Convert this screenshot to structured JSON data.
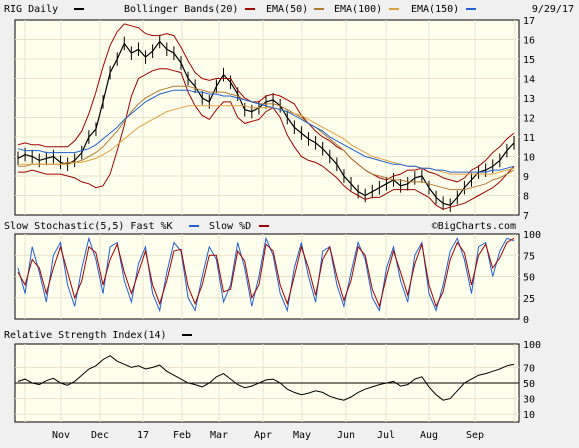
{
  "chart_data": {
    "type": "line",
    "date": "9/29/17",
    "x_month_labels": [
      "Nov",
      "Dec",
      "17",
      "Feb",
      "Mar",
      "Apr",
      "May",
      "Jun",
      "Jul",
      "Aug",
      "Sep"
    ],
    "watermark": "©BigCharts.com",
    "colors": {
      "panel_bg": "#ffffee",
      "grid": "#e6e3c8",
      "price": "#000000",
      "bollinger": "#a00000",
      "ema50": "#b07a30",
      "ema100": "#e0a040",
      "ema150": "#2060d0",
      "stoch_fast": "#2060d0",
      "stoch_slow": "#a00000",
      "rsi": "#000000"
    },
    "panels": [
      {
        "id": "price",
        "legend": [
          {
            "label": "RIG Daily",
            "swatch": "#000000"
          },
          {
            "label": "Bollinger Bands(20)",
            "swatch": "#a00000"
          },
          {
            "label": "EMA(50)",
            "swatch": "#b07a30"
          },
          {
            "label": "EMA(100)",
            "swatch": "#e0a040"
          },
          {
            "label": "EMA(150)",
            "swatch": "#2060d0"
          }
        ],
        "ylim": [
          7,
          17
        ],
        "yticks": [
          "7",
          "8",
          "9",
          "10",
          "11",
          "12",
          "13",
          "14",
          "15",
          "16",
          "17"
        ],
        "series": [
          {
            "name": "RIG Daily",
            "values": [
              9.9,
              10.1,
              10.0,
              9.8,
              9.9,
              10.0,
              9.7,
              9.6,
              9.8,
              10.2,
              11.0,
              11.4,
              12.8,
              14.3,
              15.0,
              15.8,
              15.3,
              15.5,
              15.1,
              15.4,
              15.9,
              15.5,
              15.3,
              14.8,
              14.0,
              13.6,
              13.0,
              12.8,
              13.6,
              14.2,
              13.8,
              13.2,
              12.4,
              12.3,
              12.5,
              12.8,
              12.9,
              12.6,
              12.0,
              11.5,
              11.2,
              10.9,
              10.7,
              10.4,
              10.0,
              9.6,
              9.0,
              8.6,
              8.2,
              8.0,
              8.2,
              8.4,
              8.6,
              8.8,
              8.5,
              8.6,
              8.9,
              9.0,
              8.4,
              7.9,
              7.6,
              7.5,
              7.9,
              8.4,
              8.8,
              9.2,
              9.3,
              9.5,
              9.8,
              10.3,
              10.7
            ]
          },
          {
            "name": "Bollinger Bands(20)",
            "values": [
              10.6,
              10.7,
              10.6,
              10.6,
              10.5,
              10.5,
              10.5,
              10.5,
              10.8,
              11.3,
              12.2,
              13.3,
              14.6,
              15.7,
              16.4,
              16.8,
              16.7,
              16.6,
              16.3,
              16.2,
              16.2,
              16.3,
              16.2,
              15.6,
              14.9,
              14.3,
              14.0,
              13.9,
              14.0,
              14.0,
              14.0,
              13.4,
              13.0,
              12.8,
              12.8,
              13.1,
              13.2,
              13.1,
              12.9,
              12.7,
              12.1,
              11.7,
              11.3,
              11.0,
              10.8,
              10.5,
              10.3,
              9.9,
              9.6,
              9.3,
              9.1,
              8.9,
              8.8,
              9.0,
              9.1,
              9.3,
              9.3,
              9.4,
              9.2,
              9.1,
              8.9,
              8.8,
              8.7,
              8.9,
              9.3,
              9.5,
              9.8,
              10.2,
              10.5,
              10.9,
              11.2
            ]
          },
          {
            "name": "Bollinger Bands(20)",
            "values": [
              9.2,
              9.2,
              9.3,
              9.2,
              9.1,
              9.1,
              9.1,
              9.0,
              8.9,
              8.7,
              8.6,
              8.4,
              8.5,
              9.1,
              10.3,
              11.6,
              13.1,
              14.0,
              14.2,
              14.4,
              14.5,
              14.5,
              14.4,
              14.3,
              13.3,
              12.6,
              12.1,
              11.9,
              12.4,
              12.8,
              12.8,
              12.0,
              11.7,
              11.8,
              11.9,
              12.3,
              12.5,
              12.0,
              11.1,
              10.5,
              10.0,
              9.8,
              9.7,
              9.5,
              9.2,
              8.9,
              8.5,
              8.2,
              8.0,
              7.8,
              7.9,
              7.9,
              8.1,
              8.3,
              8.3,
              8.3,
              8.3,
              8.1,
              7.9,
              7.5,
              7.3,
              7.4,
              7.5,
              7.6,
              7.8,
              8.0,
              8.2,
              8.4,
              8.7,
              9.1,
              9.5
            ]
          },
          {
            "name": "EMA(50)",
            "values": [
              9.5,
              9.5,
              9.6,
              9.6,
              9.6,
              9.6,
              9.6,
              9.7,
              9.7,
              9.8,
              10.0,
              10.2,
              10.5,
              10.9,
              11.3,
              11.8,
              12.3,
              12.7,
              13.0,
              13.2,
              13.4,
              13.5,
              13.6,
              13.6,
              13.6,
              13.5,
              13.4,
              13.3,
              13.3,
              13.3,
              13.2,
              13.1,
              12.9,
              12.8,
              12.7,
              12.7,
              12.7,
              12.6,
              12.4,
              12.2,
              12.0,
              11.7,
              11.5,
              11.2,
              10.9,
              10.6,
              10.3,
              9.9,
              9.6,
              9.3,
              9.1,
              9.0,
              8.9,
              8.8,
              8.8,
              8.7,
              8.7,
              8.7,
              8.6,
              8.5,
              8.4,
              8.3,
              8.3,
              8.3,
              8.4,
              8.5,
              8.6,
              8.8,
              8.9,
              9.1,
              9.3
            ]
          },
          {
            "name": "EMA(100)",
            "values": [
              9.6,
              9.6,
              9.6,
              9.6,
              9.6,
              9.6,
              9.6,
              9.6,
              9.7,
              9.7,
              9.8,
              9.9,
              10.1,
              10.3,
              10.6,
              10.9,
              11.2,
              11.5,
              11.7,
              11.9,
              12.1,
              12.3,
              12.4,
              12.5,
              12.6,
              12.6,
              12.6,
              12.6,
              12.6,
              12.6,
              12.6,
              12.6,
              12.6,
              12.5,
              12.5,
              12.5,
              12.5,
              12.4,
              12.3,
              12.2,
              12.1,
              11.9,
              11.7,
              11.5,
              11.3,
              11.1,
              10.9,
              10.6,
              10.4,
              10.2,
              10.0,
              9.9,
              9.8,
              9.7,
              9.6,
              9.5,
              9.5,
              9.4,
              9.4,
              9.3,
              9.2,
              9.1,
              9.1,
              9.1,
              9.1,
              9.1,
              9.1,
              9.1,
              9.2,
              9.3,
              9.4
            ]
          },
          {
            "name": "EMA(150)",
            "values": [
              10.4,
              10.3,
              10.3,
              10.3,
              10.2,
              10.2,
              10.2,
              10.2,
              10.2,
              10.3,
              10.4,
              10.6,
              10.9,
              11.2,
              11.5,
              11.9,
              12.2,
              12.5,
              12.8,
              13.0,
              13.2,
              13.3,
              13.4,
              13.4,
              13.4,
              13.3,
              13.3,
              13.2,
              13.2,
              13.1,
              13.1,
              13.0,
              12.9,
              12.8,
              12.7,
              12.6,
              12.5,
              12.4,
              12.3,
              12.1,
              11.9,
              11.7,
              11.5,
              11.3,
              11.0,
              10.8,
              10.6,
              10.4,
              10.2,
              10.0,
              9.9,
              9.8,
              9.7,
              9.6,
              9.6,
              9.5,
              9.5,
              9.4,
              9.4,
              9.3,
              9.3,
              9.2,
              9.2,
              9.2,
              9.2,
              9.2,
              9.2,
              9.3,
              9.3,
              9.4,
              9.5
            ]
          }
        ]
      },
      {
        "id": "stochastic",
        "legend": [
          {
            "label": "Slow Stochastic(5,5) Fast %K",
            "swatch": "#2060d0"
          },
          {
            "label": "Slow %D",
            "swatch": "#a00000"
          }
        ],
        "ylim": [
          0,
          100
        ],
        "yticks": [
          "0",
          "25",
          "50",
          "75",
          "100"
        ],
        "series": [
          {
            "name": "Fast %K",
            "values": [
              60,
              30,
              85,
              55,
              20,
              75,
              90,
              40,
              15,
              60,
              95,
              70,
              30,
              85,
              90,
              45,
              20,
              65,
              85,
              30,
              10,
              55,
              90,
              80,
              25,
              10,
              50,
              85,
              70,
              20,
              40,
              90,
              60,
              15,
              50,
              95,
              75,
              30,
              10,
              60,
              90,
              50,
              20,
              80,
              85,
              40,
              15,
              55,
              90,
              70,
              25,
              10,
              60,
              85,
              45,
              20,
              75,
              90,
              30,
              10,
              40,
              80,
              95,
              70,
              30,
              85,
              90,
              50,
              80,
              95,
              92
            ]
          },
          {
            "name": "Slow %D",
            "values": [
              55,
              40,
              70,
              60,
              30,
              60,
              85,
              55,
              25,
              45,
              85,
              78,
              40,
              70,
              88,
              55,
              30,
              55,
              80,
              40,
              18,
              45,
              80,
              82,
              38,
              18,
              40,
              75,
              75,
              32,
              35,
              80,
              68,
              25,
              40,
              88,
              80,
              40,
              18,
              50,
              85,
              60,
              28,
              70,
              85,
              50,
              22,
              45,
              85,
              75,
              35,
              15,
              50,
              80,
              55,
              28,
              65,
              88,
              40,
              15,
              32,
              70,
              90,
              78,
              40,
              75,
              88,
              60,
              72,
              90,
              95
            ]
          }
        ]
      },
      {
        "id": "rsi",
        "legend": [
          {
            "label": "Relative Strength Index(14)",
            "swatch": "#000000"
          }
        ],
        "ylim": [
          0,
          100
        ],
        "yticks": [
          "10",
          "30",
          "50",
          "70",
          "100"
        ],
        "reference_line": 50,
        "series": [
          {
            "name": "RSI(14)",
            "values": [
              52,
              55,
              50,
              48,
              53,
              56,
              50,
              47,
              52,
              60,
              68,
              72,
              80,
              85,
              78,
              74,
              70,
              72,
              68,
              70,
              73,
              65,
              60,
              55,
              50,
              48,
              45,
              50,
              58,
              62,
              55,
              48,
              44,
              46,
              50,
              54,
              55,
              50,
              42,
              38,
              35,
              37,
              40,
              38,
              33,
              30,
              28,
              32,
              38,
              42,
              45,
              48,
              50,
              52,
              46,
              48,
              55,
              58,
              45,
              35,
              28,
              30,
              40,
              50,
              55,
              60,
              62,
              65,
              68,
              72,
              74
            ]
          }
        ]
      }
    ]
  }
}
